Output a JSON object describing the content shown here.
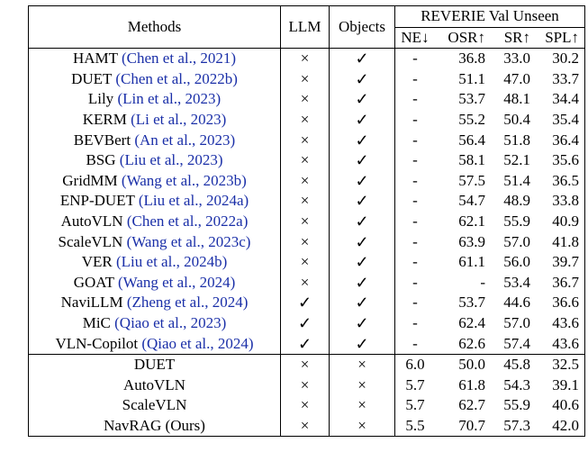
{
  "header": {
    "methods": "Methods",
    "llm": "LLM",
    "objects": "Objects",
    "group": "REVERIE Val Unseen",
    "metrics": [
      "NE↓",
      "OSR↑",
      "SR↑",
      "SPL↑"
    ]
  },
  "symbols": {
    "yes": "✓",
    "no": "×"
  },
  "top_rows": [
    {
      "name": "HAMT",
      "cite": "(Chen et al., 2021)",
      "llm": "×",
      "obj": "✓",
      "ne": "-",
      "osr": "36.8",
      "sr": "33.0",
      "spl": "30.2"
    },
    {
      "name": "DUET",
      "cite": "(Chen et al., 2022b)",
      "llm": "×",
      "obj": "✓",
      "ne": "-",
      "osr": "51.1",
      "sr": "47.0",
      "spl": "33.7"
    },
    {
      "name": "Lily",
      "cite": "(Lin et al., 2023)",
      "llm": "×",
      "obj": "✓",
      "ne": "-",
      "osr": "53.7",
      "sr": "48.1",
      "spl": "34.4"
    },
    {
      "name": "KERM",
      "cite": "(Li et al., 2023)",
      "llm": "×",
      "obj": "✓",
      "ne": "-",
      "osr": "55.2",
      "sr": "50.4",
      "spl": "35.4"
    },
    {
      "name": "BEVBert",
      "cite": "(An et al., 2023)",
      "llm": "×",
      "obj": "✓",
      "ne": "-",
      "osr": "56.4",
      "sr": "51.8",
      "spl": "36.4"
    },
    {
      "name": "BSG",
      "cite": "(Liu et al., 2023)",
      "llm": "×",
      "obj": "✓",
      "ne": "-",
      "osr": "58.1",
      "sr": "52.1",
      "spl": "35.6"
    },
    {
      "name": "GridMM",
      "cite": "(Wang et al., 2023b)",
      "llm": "×",
      "obj": "✓",
      "ne": "-",
      "osr": "57.5",
      "sr": "51.4",
      "spl": "36.5"
    },
    {
      "name": "ENP-DUET",
      "cite": "(Liu et al., 2024a)",
      "llm": "×",
      "obj": "✓",
      "ne": "-",
      "osr": "54.7",
      "sr": "48.9",
      "spl": "33.8"
    },
    {
      "name": "AutoVLN",
      "cite": "(Chen et al., 2022a)",
      "llm": "×",
      "obj": "✓",
      "ne": "-",
      "osr": "62.1",
      "sr": "55.9",
      "spl": "40.9"
    },
    {
      "name": "ScaleVLN",
      "cite": "(Wang et al., 2023c)",
      "llm": "×",
      "obj": "✓",
      "ne": "-",
      "osr": "63.9",
      "sr": "57.0",
      "spl": "41.8",
      "bold": [
        "osr"
      ]
    },
    {
      "name": "VER",
      "cite": "(Liu et al., 2024b)",
      "llm": "×",
      "obj": "✓",
      "ne": "-",
      "osr": "61.1",
      "sr": "56.0",
      "spl": "39.7"
    },
    {
      "name": "GOAT",
      "cite": "(Wang et al., 2024)",
      "llm": "×",
      "obj": "✓",
      "ne": "-",
      "osr": "-",
      "sr": "53.4",
      "spl": "36.7"
    },
    {
      "name": "NaviLLM",
      "cite": "(Zheng et al., 2024)",
      "llm": "✓",
      "obj": "✓",
      "ne": "-",
      "osr": "53.7",
      "sr": "44.6",
      "spl": "36.6"
    },
    {
      "name": "MiC",
      "cite": "(Qiao et al., 2023)",
      "llm": "✓",
      "obj": "✓",
      "ne": "-",
      "osr": "62.4",
      "sr": "57.0",
      "spl": "43.6"
    },
    {
      "name": "VLN-Copilot",
      "cite": "(Qiao et al., 2024)",
      "llm": "✓",
      "obj": "✓",
      "ne": "-",
      "osr": "62.6",
      "sr": "57.4",
      "spl": "43.6",
      "bold": [
        "sr",
        "spl"
      ]
    }
  ],
  "bottom_rows": [
    {
      "name": "DUET",
      "cite": "",
      "llm": "×",
      "obj": "×",
      "ne": "6.0",
      "osr": "50.0",
      "sr": "45.8",
      "spl": "32.5"
    },
    {
      "name": "AutoVLN",
      "cite": "",
      "llm": "×",
      "obj": "×",
      "ne": "5.7",
      "osr": "61.8",
      "sr": "54.3",
      "spl": "39.1"
    },
    {
      "name": "ScaleVLN",
      "cite": "",
      "llm": "×",
      "obj": "×",
      "ne": "5.7",
      "osr": "62.7",
      "sr": "55.9",
      "spl": "40.6"
    },
    {
      "name": "NavRAG (Ours)",
      "cite": "",
      "llm": "×",
      "obj": "×",
      "ne": "5.5",
      "osr": "70.7",
      "sr": "57.3",
      "spl": "42.0",
      "bold": [
        "ne",
        "osr",
        "sr",
        "spl"
      ]
    }
  ]
}
